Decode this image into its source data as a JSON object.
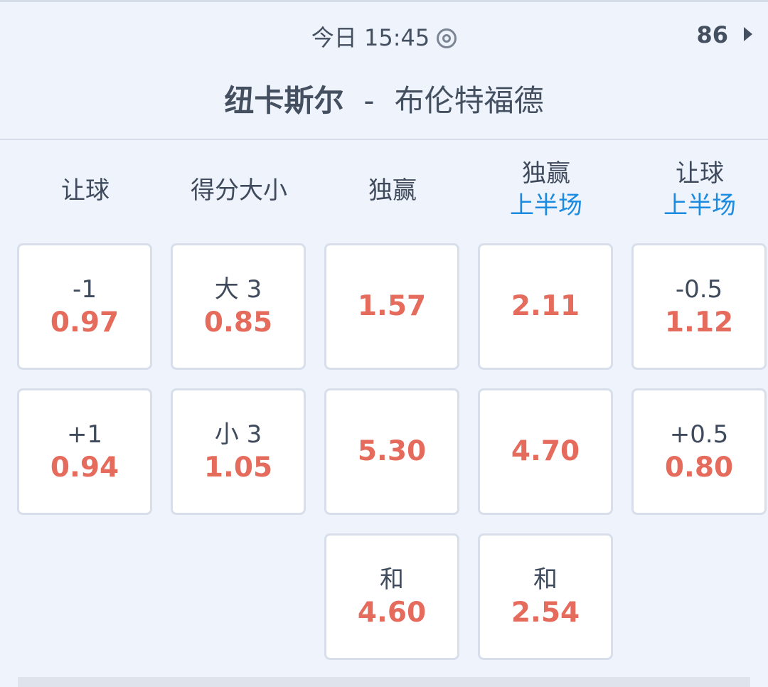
{
  "header": {
    "time": "今日 15:45",
    "more_count": "86",
    "home_team": "纽卡斯尔",
    "separator": "-",
    "away_team": "布伦特福德"
  },
  "columns": [
    {
      "title": "让球",
      "subtitle": null
    },
    {
      "title": "得分大小",
      "subtitle": null
    },
    {
      "title": "独赢",
      "subtitle": null
    },
    {
      "title": "独赢",
      "subtitle": "上半场"
    },
    {
      "title": "让球",
      "subtitle": "上半场"
    }
  ],
  "cells": [
    [
      {
        "label": "-1",
        "odds": "0.97"
      },
      {
        "label": "+1",
        "odds": "0.94"
      }
    ],
    [
      {
        "label": "大 3",
        "odds": "0.85"
      },
      {
        "label": "小 3",
        "odds": "1.05"
      }
    ],
    [
      {
        "label": "",
        "odds": "1.57"
      },
      {
        "label": "",
        "odds": "5.30"
      },
      {
        "label": "和",
        "odds": "4.60"
      }
    ],
    [
      {
        "label": "",
        "odds": "2.11"
      },
      {
        "label": "",
        "odds": "4.70"
      },
      {
        "label": "和",
        "odds": "2.54"
      }
    ],
    [
      {
        "label": "-0.5",
        "odds": "1.12"
      },
      {
        "label": "+0.5",
        "odds": "0.80"
      }
    ]
  ],
  "colors": {
    "odds": "#e56b5d",
    "subtitle": "#1a8be0",
    "text": "#3f4b5d",
    "background": "#eef3fc"
  }
}
